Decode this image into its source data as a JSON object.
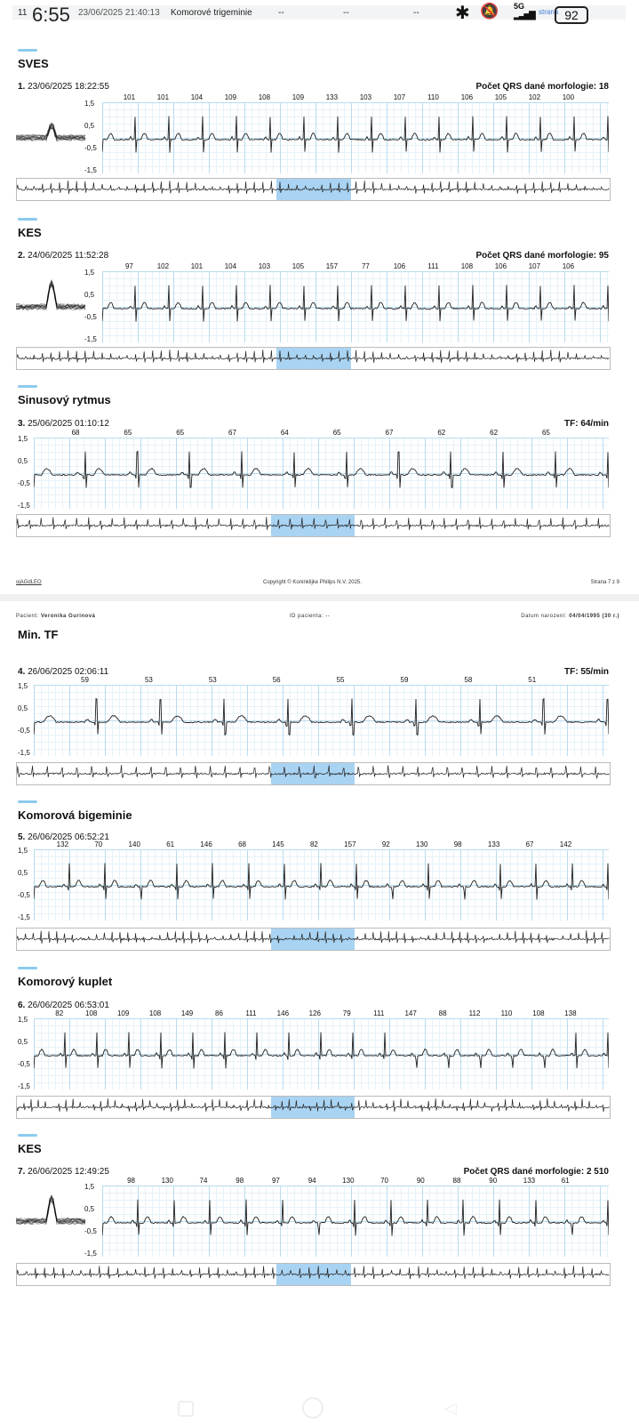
{
  "status_bar": {
    "notif_count": "11",
    "time": "6:55",
    "overlay_datetime": "23/06/2025 21:40:13",
    "overlay_event": "Komorové trigeminie",
    "dashes": [
      "--",
      "--",
      "--"
    ],
    "network": "5G",
    "battery": "92",
    "overlay_page": "strana"
  },
  "y_axis_labels": [
    "1,5",
    "0,5",
    "-0,5",
    "-1,5"
  ],
  "page1": {
    "sections": [
      {
        "title": "SVES",
        "index": "1.",
        "datetime": "23/06/2025 18:22:55",
        "right_label": "Počet QRS dané morfologie:",
        "right_value": "18",
        "thumbnail": true,
        "rates": [
          "101",
          "101",
          "104",
          "109",
          "108",
          "109",
          "133",
          "103",
          "107",
          "110",
          "106",
          "105",
          "102",
          "100"
        ]
      },
      {
        "title": "KES",
        "index": "2.",
        "datetime": "24/06/2025 11:52:28",
        "right_label": "Počet QRS dané morfologie:",
        "right_value": "95",
        "thumbnail": true,
        "rates": [
          "97",
          "102",
          "101",
          "104",
          "103",
          "105",
          "157",
          "77",
          "106",
          "111",
          "108",
          "106",
          "107",
          "106"
        ]
      },
      {
        "title": "Sinusový rytmus",
        "index": "3.",
        "datetime": "25/06/2025 01:10:12",
        "right_label": "TF:",
        "right_value": "64/min",
        "thumbnail": false,
        "rates": [
          "68",
          "65",
          "65",
          "67",
          "64",
          "65",
          "67",
          "62",
          "62",
          "65"
        ]
      }
    ],
    "footer": {
      "code": "ojAGdLEO",
      "copyright": "Copyright © Koninklijke Philips N.V. 2025.",
      "page": "Strana 7 z 9"
    }
  },
  "page2": {
    "header": {
      "patient_label": "Pacient:",
      "patient_name": "Veronika Gurinová",
      "id_label": "ID pacienta:",
      "id_value": "--",
      "dob_label": "Datum narození:",
      "dob_value": "04/04/1995 (30 r.)"
    },
    "sections": [
      {
        "title": "Min. TF",
        "index": "4.",
        "datetime": "26/06/2025 02:06:11",
        "right_label": "TF:",
        "right_value": "55/min",
        "thumbnail": false,
        "rates": [
          "59",
          "53",
          "53",
          "56",
          "55",
          "59",
          "58",
          "51"
        ]
      },
      {
        "title": "Komorová bigeminie",
        "index": "5.",
        "datetime": "26/06/2025 06:52:21",
        "right_label": "",
        "right_value": "",
        "thumbnail": false,
        "rates": [
          "132",
          "70",
          "140",
          "61",
          "146",
          "68",
          "145",
          "82",
          "157",
          "92",
          "130",
          "98",
          "133",
          "67",
          "142"
        ]
      },
      {
        "title": "Komorový kuplet",
        "index": "6.",
        "datetime": "26/06/2025 06:53:01",
        "right_label": "",
        "right_value": "",
        "thumbnail": false,
        "rates": [
          "82",
          "108",
          "109",
          "108",
          "149",
          "86",
          "111",
          "146",
          "126",
          "79",
          "111",
          "147",
          "88",
          "112",
          "110",
          "108",
          "138"
        ]
      },
      {
        "title": "KES",
        "index": "7.",
        "datetime": "26/06/2025 12:49:25",
        "right_label": "Počet QRS dané morfologie:",
        "right_value": "2 510",
        "thumbnail": true,
        "rates": [
          "98",
          "130",
          "74",
          "98",
          "97",
          "94",
          "130",
          "70",
          "90",
          "88",
          "90",
          "133",
          "61"
        ]
      }
    ]
  },
  "colors": {
    "accent": "#8ccbee",
    "highlight": "#a9d3f2",
    "grid_major": "#b9dcef",
    "grid_minor": "#e6f2f9"
  }
}
